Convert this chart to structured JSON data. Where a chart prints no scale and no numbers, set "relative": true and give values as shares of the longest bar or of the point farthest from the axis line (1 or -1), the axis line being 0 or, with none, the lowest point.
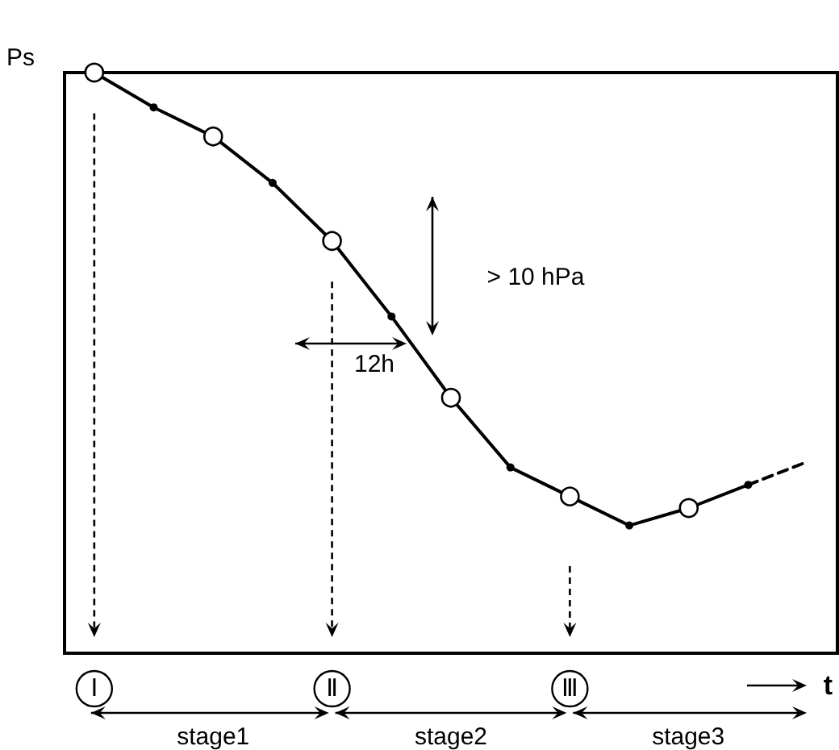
{
  "chart_data": {
    "type": "line",
    "relative": true,
    "ylabel": "Ps",
    "xlabel": "t",
    "categories": [
      null,
      null,
      null,
      null,
      null,
      null,
      null,
      null,
      null,
      null,
      null,
      null,
      null
    ],
    "series": [
      {
        "color": "#000000",
        "marker": "circle",
        "line_style": "solid",
        "values": [
          1,
          0.94,
          0.89,
          0.81,
          0.71,
          0.58,
          0.44,
          0.32,
          0.27,
          0.22,
          0.25,
          0.29,
          null
        ]
      },
      {
        "color": "#000000",
        "line_style": "dashed",
        "values": [
          null,
          null,
          null,
          null,
          null,
          null,
          null,
          null,
          null,
          null,
          null,
          0.29,
          0.33
        ]
      }
    ],
    "annotations": [
      "Ⅰ",
      "Ⅱ",
      "Ⅲ",
      "stage1",
      "stage2",
      "stage3",
      "> 10 hPa",
      "12h"
    ],
    "grid": false
  }
}
